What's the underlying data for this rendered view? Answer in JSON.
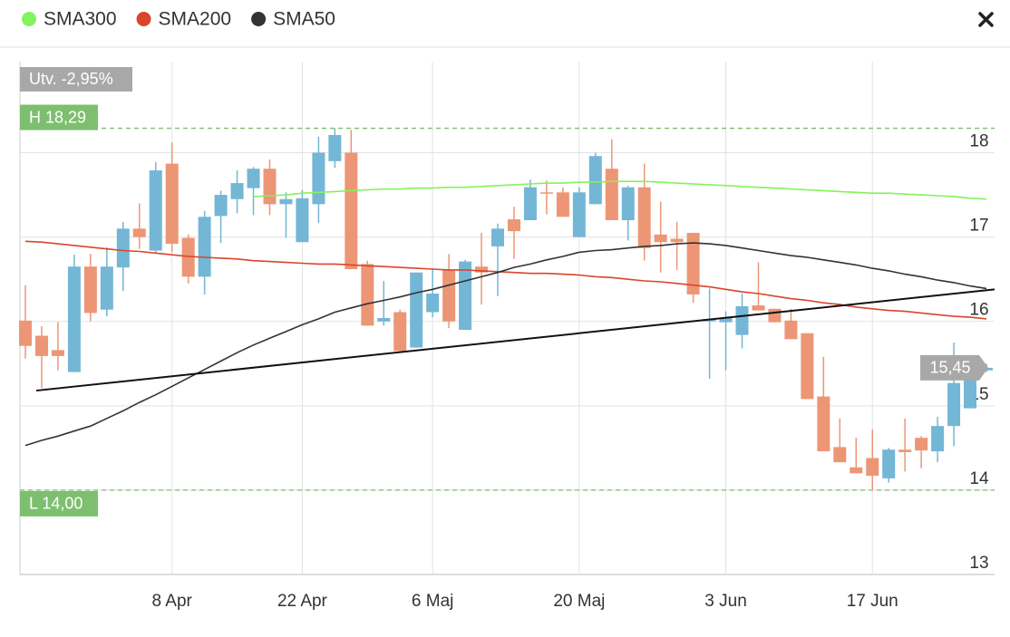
{
  "chart_data": {
    "type": "candlestick",
    "categories": [
      null,
      null,
      null,
      null,
      null,
      null,
      null,
      null,
      null,
      "8 Apr",
      null,
      null,
      null,
      null,
      null,
      null,
      null,
      "22 Apr",
      null,
      null,
      null,
      null,
      null,
      null,
      null,
      "6 Maj",
      null,
      null,
      null,
      null,
      null,
      null,
      null,
      null,
      "20 Maj",
      null,
      null,
      null,
      null,
      null,
      null,
      null,
      null,
      "3 Jun",
      null,
      null,
      null,
      null,
      null,
      null,
      null,
      null,
      "17 Jun",
      null,
      null,
      null,
      null,
      null,
      null,
      null
    ],
    "open": [
      16.01,
      15.83,
      15.66,
      15.4,
      16.65,
      16.14,
      16.64,
      17.1,
      16.84,
      17.87,
      16.99,
      16.53,
      17.25,
      17.45,
      17.58,
      17.81,
      17.39,
      16.94,
      17.39,
      17.9,
      18.0,
      16.68,
      16.0,
      16.11,
      15.69,
      16.11,
      16.61,
      15.9,
      16.65,
      16.89,
      17.21,
      17.2,
      17.53,
      17.53,
      17.0,
      17.39,
      17.81,
      17.2,
      17.59,
      17.03,
      16.98,
      17.05,
      16.0,
      15.99,
      15.84,
      16.19,
      16.15,
      16.01,
      15.86,
      15.11,
      14.51,
      14.27,
      14.38,
      14.14,
      14.48,
      14.62,
      14.46,
      14.76,
      14.97,
      15.42
    ],
    "high": [
      16.43,
      15.94,
      15.99,
      16.79,
      16.8,
      16.88,
      17.18,
      17.4,
      17.89,
      18.12,
      17.03,
      17.31,
      17.55,
      17.79,
      17.83,
      17.92,
      17.53,
      17.56,
      18.19,
      18.29,
      18.27,
      16.72,
      16.48,
      16.14,
      16.58,
      16.62,
      16.8,
      16.73,
      17.05,
      17.16,
      17.36,
      17.68,
      17.67,
      17.59,
      17.59,
      18.0,
      18.16,
      17.61,
      17.87,
      17.42,
      17.18,
      17.05,
      16.39,
      16.12,
      16.33,
      16.7,
      16.15,
      16.15,
      15.86,
      15.58,
      14.85,
      14.62,
      14.72,
      14.5,
      14.85,
      14.64,
      14.87,
      15.75,
      15.53,
      15.5
    ],
    "low": [
      15.56,
      15.21,
      15.42,
      15.4,
      16.0,
      16.06,
      16.36,
      16.86,
      16.82,
      16.82,
      16.45,
      16.32,
      16.93,
      17.28,
      17.26,
      17.26,
      16.99,
      16.94,
      17.17,
      17.82,
      16.62,
      15.95,
      15.95,
      15.65,
      15.69,
      16.05,
      15.92,
      15.9,
      16.2,
      16.3,
      16.74,
      17.2,
      17.27,
      17.24,
      17.0,
      17.39,
      17.2,
      16.96,
      16.72,
      16.58,
      16.61,
      16.22,
      15.32,
      15.42,
      15.68,
      16.13,
      15.99,
      15.79,
      15.08,
      14.46,
      14.33,
      14.2,
      14.0,
      14.09,
      14.22,
      14.26,
      14.33,
      14.52,
      14.97,
      15.4
    ],
    "close": [
      15.71,
      15.59,
      15.59,
      16.65,
      16.1,
      16.65,
      17.1,
      17.0,
      17.79,
      16.92,
      16.53,
      17.24,
      17.5,
      17.64,
      17.81,
      17.39,
      17.45,
      17.46,
      18.0,
      18.21,
      16.62,
      15.95,
      16.04,
      15.65,
      16.58,
      16.33,
      16.0,
      16.71,
      16.58,
      17.1,
      17.07,
      17.59,
      17.52,
      17.24,
      17.53,
      17.96,
      17.2,
      17.59,
      16.87,
      16.94,
      16.94,
      16.32,
      16.03,
      16.04,
      16.18,
      16.13,
      15.99,
      15.79,
      15.08,
      14.46,
      14.33,
      14.2,
      14.17,
      14.48,
      14.45,
      14.47,
      14.76,
      15.27,
      15.35,
      15.45
    ],
    "up_color": "#74b6d5",
    "down_color": "#ec9675",
    "series": [
      {
        "name": "SMA300",
        "color": "#84f25c",
        "values": [
          null,
          null,
          null,
          null,
          null,
          null,
          null,
          null,
          null,
          null,
          null,
          null,
          null,
          null,
          17.48,
          17.49,
          17.5,
          17.52,
          17.53,
          17.54,
          17.55,
          17.56,
          17.57,
          17.57,
          17.58,
          17.58,
          17.59,
          17.59,
          17.6,
          17.61,
          17.62,
          17.63,
          17.64,
          17.64,
          17.65,
          17.65,
          17.66,
          17.66,
          17.66,
          17.65,
          17.64,
          17.63,
          17.62,
          17.61,
          17.6,
          17.59,
          17.58,
          17.57,
          17.56,
          17.55,
          17.54,
          17.53,
          17.52,
          17.52,
          17.51,
          17.5,
          17.49,
          17.48,
          17.46,
          17.45
        ]
      },
      {
        "name": "SMA200",
        "color": "#d9452b",
        "values": [
          16.95,
          16.94,
          16.92,
          16.9,
          16.88,
          16.86,
          16.84,
          16.83,
          16.81,
          16.79,
          16.77,
          16.76,
          16.75,
          16.74,
          16.72,
          16.71,
          16.7,
          16.69,
          16.68,
          16.68,
          16.67,
          16.66,
          16.65,
          16.64,
          16.63,
          16.62,
          16.61,
          16.61,
          16.6,
          16.59,
          16.58,
          16.57,
          16.57,
          16.56,
          16.55,
          16.53,
          16.52,
          16.5,
          16.48,
          16.47,
          16.45,
          16.43,
          16.41,
          16.38,
          16.35,
          16.33,
          16.3,
          16.27,
          16.25,
          16.22,
          16.2,
          16.17,
          16.15,
          16.13,
          16.12,
          16.1,
          16.08,
          16.06,
          16.05,
          16.03
        ]
      },
      {
        "name": "SMA50",
        "color": "#333333",
        "values": [
          14.53,
          14.59,
          14.64,
          14.7,
          14.76,
          14.85,
          14.94,
          15.04,
          15.13,
          15.23,
          15.33,
          15.43,
          15.53,
          15.63,
          15.72,
          15.8,
          15.88,
          15.96,
          16.03,
          16.11,
          16.16,
          16.21,
          16.25,
          16.29,
          16.34,
          16.38,
          16.43,
          16.48,
          16.53,
          16.58,
          16.64,
          16.68,
          16.73,
          16.77,
          16.82,
          16.84,
          16.85,
          16.87,
          16.89,
          16.9,
          16.92,
          16.93,
          16.92,
          16.9,
          16.87,
          16.84,
          16.81,
          16.78,
          16.76,
          16.73,
          16.7,
          16.67,
          16.63,
          16.6,
          16.56,
          16.53,
          16.49,
          16.46,
          16.42,
          16.39
        ]
      }
    ],
    "trendline": {
      "x": [
        1,
        59
      ],
      "y": [
        15.18,
        16.38
      ]
    },
    "ylim": [
      13,
      19.08
    ],
    "yticks": [
      13,
      14,
      15,
      16,
      17,
      18
    ],
    "grid": true,
    "change_label": "Utv. -2,95%",
    "high_line": {
      "value": 18.29,
      "label": "H 18,29"
    },
    "low_line": {
      "value": 14.0,
      "label": "L 14,00"
    },
    "last_price": {
      "value": 15.45,
      "label": "15,45"
    }
  }
}
